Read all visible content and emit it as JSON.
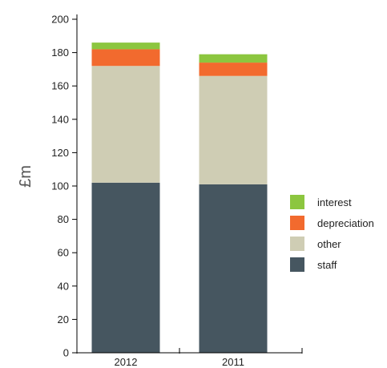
{
  "chart_data": {
    "type": "bar",
    "stacked": true,
    "categories": [
      "2012",
      "2011"
    ],
    "series": [
      {
        "name": "staff",
        "values": [
          102,
          101
        ],
        "color": "#465660"
      },
      {
        "name": "other",
        "values": [
          70,
          65
        ],
        "color": "#cfcdb4"
      },
      {
        "name": "depreciation",
        "values": [
          10,
          8
        ],
        "color": "#f26a2e"
      },
      {
        "name": "interest",
        "values": [
          4,
          5
        ],
        "color": "#8cc63f"
      }
    ],
    "legend_order": [
      "interest",
      "depreciation",
      "other",
      "staff"
    ],
    "title": "",
    "xlabel": "",
    "ylabel": "£m",
    "ylim": [
      0,
      200
    ],
    "yticks": [
      "0",
      "20",
      "40",
      "60",
      "80",
      "100",
      "120",
      "140",
      "160",
      "180",
      "200"
    ],
    "grid": false,
    "legend_position": "right"
  }
}
